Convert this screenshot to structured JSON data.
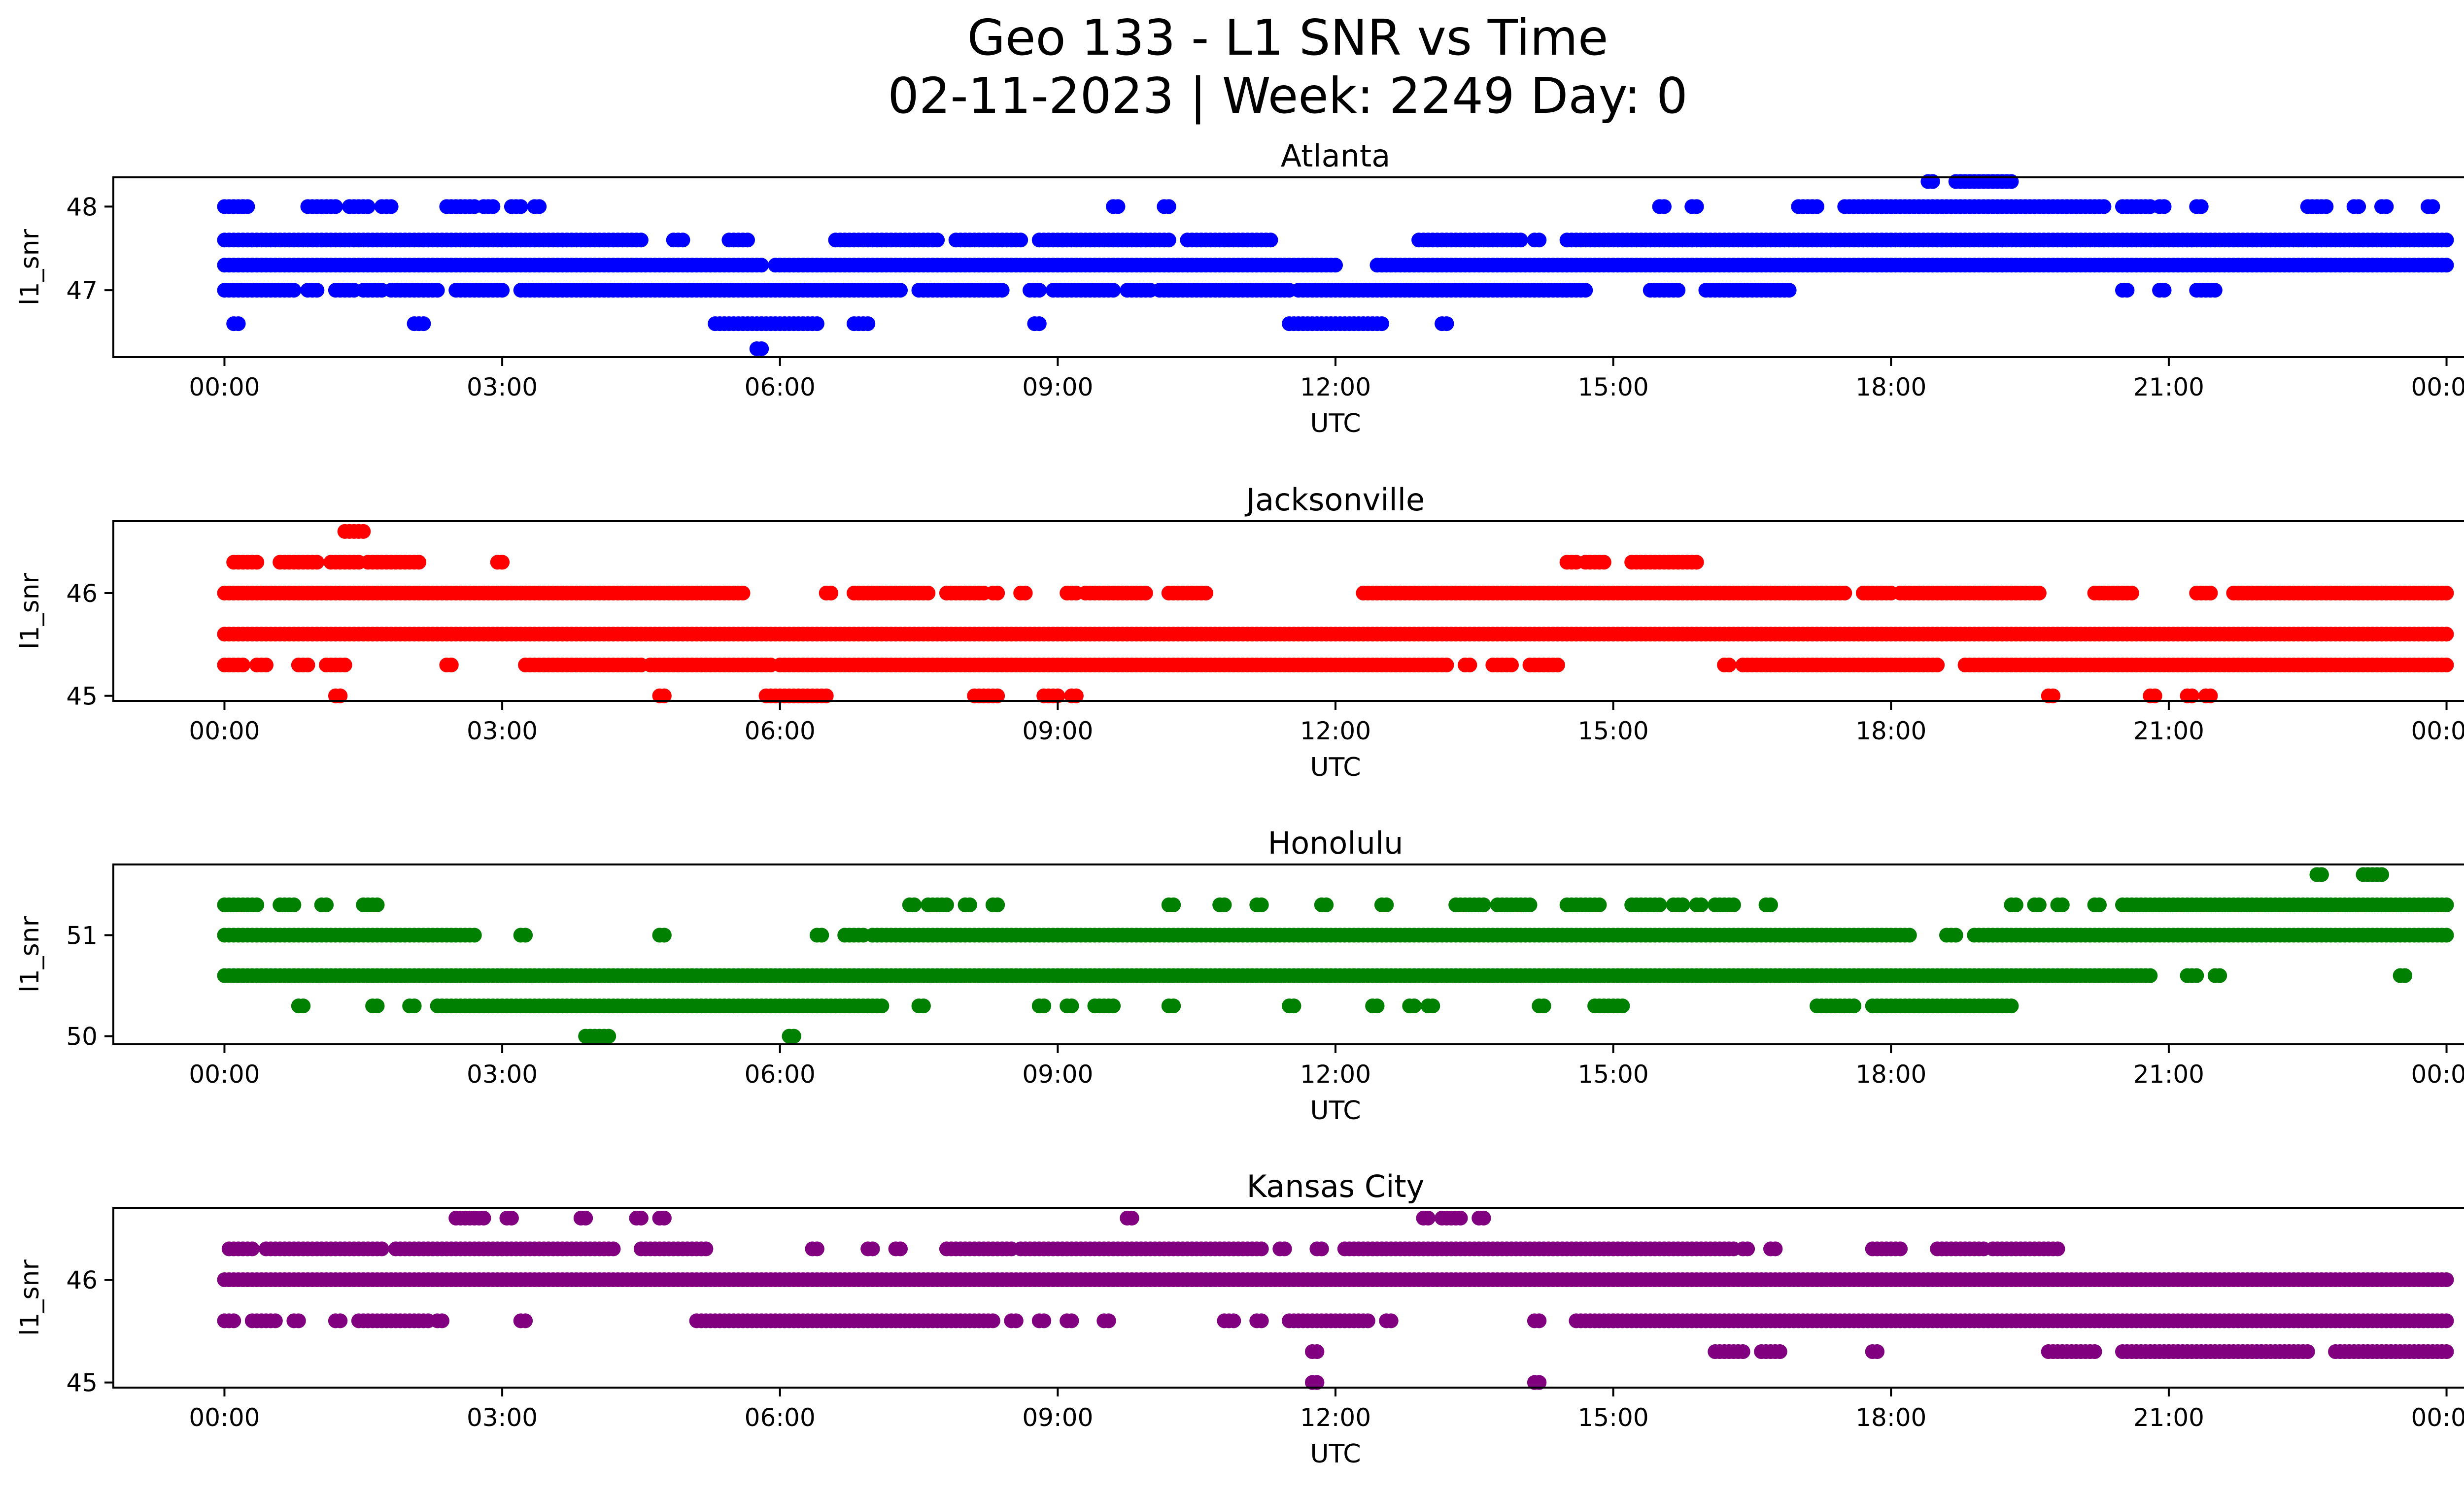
{
  "title_lines": [
    "Geo 133 - L1 SNR vs Time",
    "02-11-2023 | Week: 2249 Day: 0"
  ],
  "chart_data": [
    {
      "type": "scatter",
      "title": "Atlanta",
      "color": "#0000ff",
      "xlabel": "UTC",
      "ylabel": "l1_snr",
      "xticks": [
        "00:00",
        "03:00",
        "06:00",
        "09:00",
        "12:00",
        "15:00",
        "18:00",
        "21:00",
        "00:00"
      ],
      "xlim_hours": [
        -1.2,
        25.2
      ],
      "yticks": [
        47,
        48
      ],
      "ylim": [
        46.2,
        48.35
      ],
      "series": [
        {
          "y": 47.3,
          "ranges": [
            [
              0.0,
              5.8
            ],
            [
              5.95,
              12.0
            ],
            [
              12.45,
              24.0
            ]
          ]
        },
        {
          "y": 47.6,
          "ranges": [
            [
              0.0,
              4.5
            ],
            [
              4.85,
              4.95
            ],
            [
              5.45,
              5.65
            ],
            [
              6.6,
              7.7
            ],
            [
              7.9,
              8.6
            ],
            [
              8.8,
              10.2
            ],
            [
              10.4,
              11.3
            ],
            [
              12.9,
              13.5
            ],
            [
              13.5,
              14.0
            ],
            [
              14.15,
              14.2
            ],
            [
              14.5,
              24.0
            ]
          ]
        },
        {
          "y": 47.0,
          "ranges": [
            [
              0.0,
              0.75
            ],
            [
              0.9,
              1.0
            ],
            [
              1.2,
              1.4
            ],
            [
              1.5,
              1.7
            ],
            [
              1.8,
              2.3
            ],
            [
              2.5,
              3.0
            ],
            [
              3.2,
              7.3
            ],
            [
              7.5,
              8.4
            ],
            [
              8.7,
              8.8
            ],
            [
              8.95,
              9.6
            ],
            [
              9.75,
              10.0
            ],
            [
              10.1,
              11.5
            ],
            [
              11.6,
              14.7
            ],
            [
              15.4,
              15.7
            ],
            [
              16.0,
              16.9
            ],
            [
              20.5,
              20.55
            ],
            [
              20.9,
              20.95
            ],
            [
              21.3,
              21.5
            ]
          ]
        },
        {
          "y": 48.0,
          "ranges": [
            [
              0.0,
              0.2
            ],
            [
              0.2,
              0.25
            ],
            [
              0.9,
              1.2
            ],
            [
              1.35,
              1.55
            ],
            [
              1.7,
              1.8
            ],
            [
              2.4,
              2.7
            ],
            [
              2.8,
              2.9
            ],
            [
              3.1,
              3.2
            ],
            [
              3.35,
              3.4
            ],
            [
              9.6,
              9.65
            ],
            [
              10.15,
              10.2
            ],
            [
              15.5,
              15.55
            ],
            [
              15.85,
              15.9
            ],
            [
              17.0,
              17.2
            ],
            [
              17.5,
              20.3
            ],
            [
              20.5,
              20.8
            ],
            [
              20.9,
              20.95
            ],
            [
              21.3,
              21.35
            ],
            [
              22.5,
              22.7
            ],
            [
              23.0,
              23.05
            ],
            [
              23.3,
              23.35
            ],
            [
              23.8,
              23.85
            ]
          ]
        },
        {
          "y": 48.3,
          "ranges": [
            [
              18.4,
              18.45
            ],
            [
              18.7,
              19.3
            ]
          ]
        },
        {
          "y": 46.6,
          "ranges": [
            [
              0.1,
              0.15
            ],
            [
              2.05,
              2.15
            ],
            [
              5.3,
              6.4
            ],
            [
              6.8,
              6.95
            ],
            [
              8.75,
              8.8
            ],
            [
              11.5,
              12.5
            ],
            [
              13.15,
              13.2
            ]
          ]
        },
        {
          "y": 46.3,
          "ranges": [
            [
              5.75,
              5.8
            ]
          ]
        }
      ]
    },
    {
      "type": "scatter",
      "title": "Jacksonville",
      "color": "#ff0000",
      "xlabel": "UTC",
      "ylabel": "l1_snr",
      "xticks": [
        "00:00",
        "03:00",
        "06:00",
        "09:00",
        "12:00",
        "15:00",
        "18:00",
        "21:00",
        "00:00"
      ],
      "xlim_hours": [
        -1.2,
        25.2
      ],
      "yticks": [
        45,
        46
      ],
      "ylim": [
        44.95,
        46.7
      ],
      "series": [
        {
          "y": 45.6,
          "ranges": [
            [
              0.0,
              24.0
            ]
          ]
        },
        {
          "y": 46.0,
          "ranges": [
            [
              0.0,
              5.6
            ],
            [
              6.5,
              6.55
            ],
            [
              6.8,
              7.6
            ],
            [
              7.8,
              8.2
            ],
            [
              8.3,
              8.35
            ],
            [
              8.6,
              8.65
            ],
            [
              9.1,
              9.2
            ],
            [
              9.3,
              9.95
            ],
            [
              10.2,
              10.35
            ],
            [
              10.4,
              10.6
            ],
            [
              12.3,
              17.5
            ],
            [
              17.7,
              18.0
            ],
            [
              18.1,
              19.6
            ],
            [
              20.2,
              20.6
            ],
            [
              21.3,
              21.45
            ],
            [
              21.7,
              24.0
            ]
          ]
        },
        {
          "y": 45.3,
          "ranges": [
            [
              0.0,
              0.2
            ],
            [
              0.35,
              0.45
            ],
            [
              0.8,
              0.9
            ],
            [
              1.1,
              1.3
            ],
            [
              2.4,
              2.45
            ],
            [
              3.25,
              4.5
            ],
            [
              4.6,
              5.9
            ],
            [
              6.0,
              13.2
            ],
            [
              13.4,
              13.45
            ],
            [
              13.7,
              13.9
            ],
            [
              14.1,
              14.4
            ],
            [
              16.2,
              16.25
            ],
            [
              16.4,
              18.5
            ],
            [
              18.8,
              24.0
            ]
          ]
        },
        {
          "y": 46.3,
          "ranges": [
            [
              0.1,
              0.35
            ],
            [
              0.6,
              1.0
            ],
            [
              1.15,
              1.45
            ],
            [
              1.55,
              2.1
            ],
            [
              2.95,
              3.0
            ],
            [
              14.5,
              14.6
            ],
            [
              14.7,
              14.9
            ],
            [
              15.2,
              15.9
            ]
          ]
        },
        {
          "y": 46.6,
          "ranges": [
            [
              1.3,
              1.5
            ]
          ]
        },
        {
          "y": 45.0,
          "ranges": [
            [
              1.2,
              1.25
            ],
            [
              4.7,
              4.75
            ],
            [
              5.85,
              6.5
            ],
            [
              8.1,
              8.35
            ],
            [
              8.85,
              9.0
            ],
            [
              9.15,
              9.2
            ],
            [
              19.7,
              19.75
            ],
            [
              20.8,
              20.85
            ],
            [
              21.2,
              21.25
            ],
            [
              21.4,
              21.45
            ]
          ]
        }
      ]
    },
    {
      "type": "scatter",
      "title": "Honolulu",
      "color": "#008000",
      "xlabel": "UTC",
      "ylabel": "l1_snr",
      "xticks": [
        "00:00",
        "03:00",
        "06:00",
        "09:00",
        "12:00",
        "15:00",
        "18:00",
        "21:00",
        "00:00"
      ],
      "xlim_hours": [
        -1.2,
        25.2
      ],
      "yticks": [
        50,
        51
      ],
      "ylim": [
        49.92,
        51.7
      ],
      "series": [
        {
          "y": 50.6,
          "ranges": [
            [
              0.0,
              20.8
            ],
            [
              21.2,
              21.3
            ],
            [
              21.5,
              21.55
            ],
            [
              23.5,
              23.55
            ]
          ]
        },
        {
          "y": 51.0,
          "ranges": [
            [
              0.0,
              2.5
            ],
            [
              2.55,
              2.7
            ],
            [
              3.2,
              3.25
            ],
            [
              4.7,
              4.75
            ],
            [
              6.4,
              6.45
            ],
            [
              6.7,
              6.9
            ],
            [
              7.0,
              18.2
            ],
            [
              18.6,
              18.7
            ],
            [
              18.9,
              24.0
            ]
          ]
        },
        {
          "y": 50.3,
          "ranges": [
            [
              0.8,
              0.85
            ],
            [
              1.6,
              1.65
            ],
            [
              2.0,
              2.05
            ],
            [
              2.3,
              7.1
            ],
            [
              7.5,
              7.55
            ],
            [
              8.8,
              8.85
            ],
            [
              9.1,
              9.15
            ],
            [
              9.4,
              9.6
            ],
            [
              10.2,
              10.25
            ],
            [
              11.5,
              11.55
            ],
            [
              12.4,
              12.45
            ],
            [
              12.8,
              12.85
            ],
            [
              13.0,
              13.05
            ],
            [
              14.2,
              14.25
            ],
            [
              14.8,
              15.1
            ],
            [
              17.2,
              17.6
            ],
            [
              17.8,
              19.3
            ]
          ]
        },
        {
          "y": 51.3,
          "ranges": [
            [
              0.0,
              0.35
            ],
            [
              0.6,
              0.75
            ],
            [
              1.05,
              1.1
            ],
            [
              1.5,
              1.65
            ],
            [
              7.4,
              7.45
            ],
            [
              7.6,
              7.8
            ],
            [
              8.0,
              8.05
            ],
            [
              8.3,
              8.35
            ],
            [
              10.2,
              10.25
            ],
            [
              10.75,
              10.8
            ],
            [
              11.15,
              11.2
            ],
            [
              11.85,
              11.9
            ],
            [
              12.5,
              12.55
            ],
            [
              13.3,
              13.6
            ],
            [
              13.75,
              14.1
            ],
            [
              14.5,
              14.85
            ],
            [
              15.2,
              15.5
            ],
            [
              15.65,
              15.75
            ],
            [
              15.9,
              15.95
            ],
            [
              16.1,
              16.3
            ],
            [
              16.65,
              16.7
            ],
            [
              19.3,
              19.35
            ],
            [
              19.55,
              19.6
            ],
            [
              19.8,
              19.85
            ],
            [
              20.2,
              20.25
            ],
            [
              20.5,
              24.0
            ]
          ]
        },
        {
          "y": 51.6,
          "ranges": [
            [
              22.6,
              22.65
            ],
            [
              23.1,
              23.3
            ]
          ]
        },
        {
          "y": 50.0,
          "ranges": [
            [
              3.9,
              4.15
            ],
            [
              6.1,
              6.15
            ]
          ]
        }
      ]
    },
    {
      "type": "scatter",
      "title": "Kansas City",
      "color": "#800080",
      "xlabel": "UTC",
      "ylabel": "l1_snr",
      "xticks": [
        "00:00",
        "03:00",
        "06:00",
        "09:00",
        "12:00",
        "15:00",
        "18:00",
        "21:00",
        "00:00"
      ],
      "xlim_hours": [
        -1.2,
        25.2
      ],
      "yticks": [
        45,
        46
      ],
      "ylim": [
        44.95,
        46.7
      ],
      "series": [
        {
          "y": 46.0,
          "ranges": [
            [
              0.0,
              24.0
            ]
          ]
        },
        {
          "y": 45.6,
          "ranges": [
            [
              0.0,
              0.1
            ],
            [
              0.3,
              0.55
            ],
            [
              0.75,
              0.8
            ],
            [
              1.2,
              1.25
            ],
            [
              1.45,
              2.2
            ],
            [
              2.3,
              2.35
            ],
            [
              3.2,
              3.25
            ],
            [
              5.1,
              8.3
            ],
            [
              8.5,
              8.55
            ],
            [
              8.8,
              8.85
            ],
            [
              9.1,
              9.15
            ],
            [
              9.5,
              9.55
            ],
            [
              10.8,
              10.9
            ],
            [
              11.15,
              11.2
            ],
            [
              11.5,
              12.35
            ],
            [
              12.55,
              12.6
            ],
            [
              14.15,
              14.2
            ],
            [
              14.6,
              15.0
            ],
            [
              15.0,
              24.0
            ]
          ]
        },
        {
          "y": 46.3,
          "ranges": [
            [
              0.05,
              0.3
            ],
            [
              0.45,
              1.05
            ],
            [
              1.1,
              1.7
            ],
            [
              1.85,
              4.2
            ],
            [
              4.5,
              5.2
            ],
            [
              6.35,
              6.4
            ],
            [
              6.95,
              7.0
            ],
            [
              7.25,
              7.3
            ],
            [
              7.8,
              8.5
            ],
            [
              8.6,
              11.2
            ],
            [
              11.4,
              11.45
            ],
            [
              11.8,
              11.85
            ],
            [
              12.1,
              16.3
            ],
            [
              16.4,
              16.45
            ],
            [
              16.7,
              16.75
            ],
            [
              17.8,
              18.1
            ],
            [
              18.5,
              19.0
            ],
            [
              19.1,
              19.8
            ]
          ]
        },
        {
          "y": 46.6,
          "ranges": [
            [
              2.5,
              2.8
            ],
            [
              3.05,
              3.1
            ],
            [
              3.85,
              3.9
            ],
            [
              4.45,
              4.5
            ],
            [
              4.7,
              4.75
            ],
            [
              9.75,
              9.8
            ],
            [
              12.95,
              13.0
            ],
            [
              13.15,
              13.35
            ],
            [
              13.55,
              13.6
            ]
          ]
        },
        {
          "y": 45.3,
          "ranges": [
            [
              11.75,
              11.8
            ],
            [
              16.1,
              16.4
            ],
            [
              16.6,
              16.8
            ],
            [
              17.8,
              17.85
            ],
            [
              19.7,
              20.2
            ],
            [
              20.5,
              22.5
            ],
            [
              22.8,
              24.0
            ]
          ]
        },
        {
          "y": 45.0,
          "ranges": [
            [
              11.75,
              11.8
            ],
            [
              14.15,
              14.2
            ]
          ]
        }
      ]
    }
  ]
}
